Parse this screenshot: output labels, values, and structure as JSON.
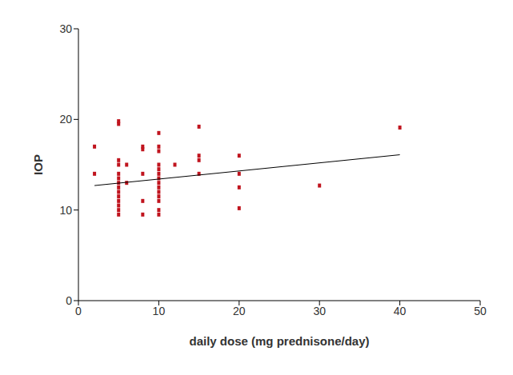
{
  "chart_data": {
    "type": "scatter",
    "x_label": "daily dose (mg prednisone/day)",
    "y_label": "IOP",
    "xlim": [
      0,
      50
    ],
    "xticks": [
      0,
      10,
      20,
      30,
      40,
      50
    ],
    "ylim": [
      0,
      30
    ],
    "yticks": [
      0,
      10,
      20,
      30
    ],
    "grid": false,
    "color": "#c0141e",
    "marker": "square",
    "x": [
      2,
      2,
      5,
      5,
      5,
      5,
      5,
      5,
      5,
      5,
      5,
      5,
      5,
      5,
      5,
      5,
      6,
      6,
      8,
      8,
      8,
      8,
      8,
      10,
      10,
      10,
      10,
      10,
      10,
      10,
      10,
      10,
      10,
      10,
      10,
      10,
      10,
      12,
      15,
      15,
      15,
      15,
      20,
      20,
      20,
      20,
      30,
      40
    ],
    "y": [
      17,
      14,
      19.5,
      19.8,
      15.5,
      15,
      14,
      13.5,
      13,
      12.5,
      12,
      11.5,
      11,
      10.5,
      10,
      9.5,
      15,
      13,
      17,
      16.7,
      14,
      11,
      9.5,
      18.5,
      17,
      16.5,
      15,
      14.5,
      14,
      13.5,
      13,
      12.5,
      12,
      11.5,
      11,
      10,
      9.5,
      15,
      19.2,
      16,
      15.5,
      14,
      16,
      14,
      12.5,
      10.2,
      12.7,
      19.1
    ],
    "trend_line": {
      "x": [
        2,
        40
      ],
      "y": [
        12.7,
        16.1
      ],
      "color": "#000000",
      "line_style": "solid"
    }
  }
}
